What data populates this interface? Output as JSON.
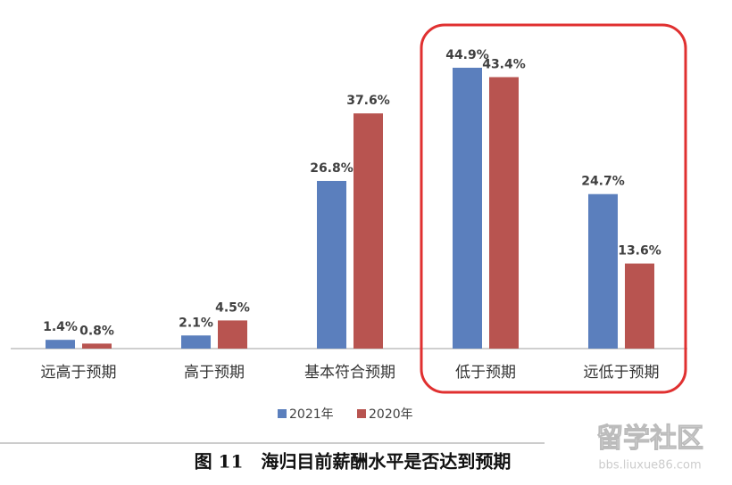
{
  "chart_data": {
    "type": "bar",
    "categories": [
      "远高于预期",
      "高于预期",
      "基本符合预期",
      "低于预期",
      "远低于预期"
    ],
    "series": [
      {
        "name": "2021年",
        "color": "#5b7fbd",
        "values": [
          1.4,
          2.1,
          26.8,
          44.9,
          24.7
        ],
        "value_labels": [
          "1.4%",
          "2.1%",
          "26.8%",
          "44.9%",
          "24.7%"
        ]
      },
      {
        "name": "2020年",
        "color": "#b85450",
        "values": [
          0.8,
          4.5,
          37.6,
          43.4,
          13.6
        ],
        "value_labels": [
          "0.8%",
          "4.5%",
          "37.6%",
          "43.4%",
          "13.6%"
        ]
      }
    ],
    "caption": "图 11　海归目前薪酬水平是否达到预期",
    "watermark": [
      "留学社区",
      "bbs.liuxue86.com"
    ]
  }
}
